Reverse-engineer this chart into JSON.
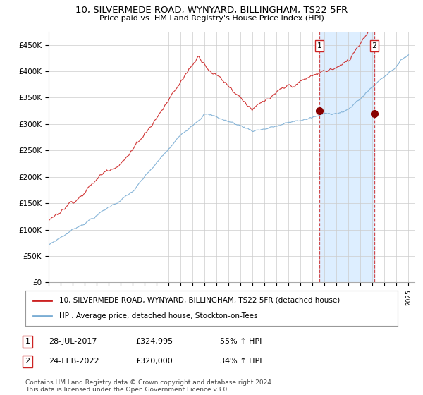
{
  "title": "10, SILVERMEDE ROAD, WYNYARD, BILLINGHAM, TS22 5FR",
  "subtitle": "Price paid vs. HM Land Registry's House Price Index (HPI)",
  "ylabel_ticks": [
    "£0",
    "£50K",
    "£100K",
    "£150K",
    "£200K",
    "£250K",
    "£300K",
    "£350K",
    "£400K",
    "£450K"
  ],
  "ytick_vals": [
    0,
    50000,
    100000,
    150000,
    200000,
    250000,
    300000,
    350000,
    400000,
    450000
  ],
  "ylim": [
    0,
    475000
  ],
  "xlim_start": 1995.0,
  "xlim_end": 2025.5,
  "hpi_color": "#7aadd4",
  "price_color": "#cc2222",
  "shade_color": "#ddeeff",
  "legend_line1": "10, SILVERMEDE ROAD, WYNYARD, BILLINGHAM, TS22 5FR (detached house)",
  "legend_line2": "HPI: Average price, detached house, Stockton-on-Tees",
  "annotation1_label": "1",
  "annotation1_date": "28-JUL-2017",
  "annotation1_price": "£324,995",
  "annotation1_pct": "55% ↑ HPI",
  "annotation2_label": "2",
  "annotation2_date": "24-FEB-2022",
  "annotation2_price": "£320,000",
  "annotation2_pct": "34% ↑ HPI",
  "footnote": "Contains HM Land Registry data © Crown copyright and database right 2024.\nThis data is licensed under the Open Government Licence v3.0.",
  "bg_color": "#ffffff",
  "grid_color": "#cccccc",
  "sale1_x": 2017.57,
  "sale1_y": 324995,
  "sale2_x": 2022.15,
  "sale2_y": 320000
}
